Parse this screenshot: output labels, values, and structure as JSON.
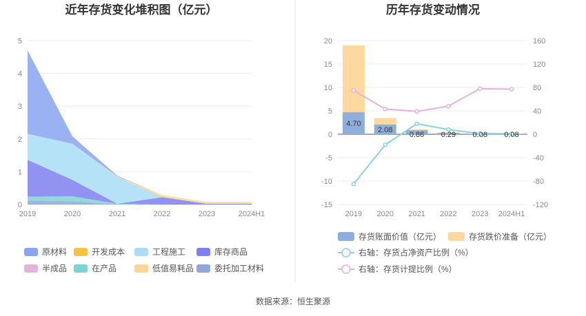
{
  "footer": {
    "source": "数据来源：恒生聚源"
  },
  "colors": {
    "raw_materials": "#8aa5f0",
    "dev_cost": "#f5c342",
    "engineering": "#a9ddf7",
    "finished_goods": "#7f7ff0",
    "semi_finished": "#e3b4d9",
    "wip": "#7dd3d3",
    "low_value": "#fbd69a",
    "consigned": "#8fa8d8",
    "book_value": "#8eaede",
    "impairment": "#fdd89f",
    "line_net_asset": "#86d3dc",
    "line_provision": "#e2b2d9"
  },
  "chart_data": [
    {
      "type": "area",
      "stacked": true,
      "title": "近年存货变化堆积图（亿元）",
      "x": [
        "2019",
        "2020",
        "2021",
        "2022",
        "2023",
        "2024H1"
      ],
      "ylim": [
        0,
        5
      ],
      "yticks": [
        "0",
        "1",
        "2",
        "3",
        "4",
        "5"
      ],
      "grid": true,
      "legend_position": "bottom",
      "series": [
        {
          "name": "委托加工材料",
          "color_key": "consigned",
          "values": [
            0.12,
            0.1,
            0.0,
            0.0,
            0.0,
            0.0
          ]
        },
        {
          "name": "在产品",
          "color_key": "wip",
          "values": [
            0.12,
            0.15,
            0.02,
            0.0,
            0.0,
            0.0
          ]
        },
        {
          "name": "半成品",
          "color_key": "semi_finished",
          "values": [
            0.0,
            0.0,
            0.0,
            0.0,
            0.0,
            0.0
          ]
        },
        {
          "name": "库存商品",
          "color_key": "finished_goods",
          "values": [
            1.12,
            0.5,
            0.0,
            0.22,
            0.02,
            0.02
          ]
        },
        {
          "name": "工程施工",
          "color_key": "engineering",
          "values": [
            0.8,
            1.1,
            0.82,
            0.0,
            0.0,
            0.0
          ]
        },
        {
          "name": "开发成本",
          "color_key": "dev_cost",
          "values": [
            0.0,
            0.0,
            0.0,
            0.02,
            0.0,
            0.0
          ]
        },
        {
          "name": "低值易耗品",
          "color_key": "low_value",
          "values": [
            0.0,
            0.0,
            0.02,
            0.05,
            0.06,
            0.06
          ]
        },
        {
          "name": "原材料",
          "color_key": "raw_materials",
          "values": [
            2.54,
            0.23,
            0.02,
            0.0,
            0.0,
            0.0
          ]
        }
      ],
      "legend_order": [
        "原材料",
        "开发成本",
        "工程施工",
        "库存商品",
        "半成品",
        "在产品",
        "低值易耗品",
        "委托加工材料"
      ]
    },
    {
      "type": "bar",
      "stacked": true,
      "title": "历年存货变动情况",
      "categories": [
        "2019",
        "2020",
        "2021",
        "2022",
        "2023",
        "2024H1"
      ],
      "ylim": [
        -15,
        20
      ],
      "yticks": [
        "-15",
        "-10",
        "-5",
        "0",
        "5",
        "10",
        "15",
        "20"
      ],
      "y2lim": [
        -120,
        160
      ],
      "y2ticks": [
        "-120",
        "-80",
        "-40",
        "0",
        "40",
        "80",
        "120",
        "160"
      ],
      "grid": true,
      "legend_position": "bottom",
      "series": [
        {
          "name": "存货账面价值（亿元）",
          "color_key": "book_value",
          "values": [
            4.7,
            2.08,
            0.86,
            0.29,
            0.08,
            0.08
          ],
          "labels": [
            "4.70",
            "2.08",
            "0.86",
            "0.29",
            "0.08",
            "0.08"
          ]
        },
        {
          "name": "存货跌价准备（亿元）",
          "color_key": "impairment",
          "values": [
            14.3,
            1.4,
            0.2,
            0.1,
            0.05,
            0.05
          ]
        }
      ],
      "lines": [
        {
          "name": "右轴：存货占净资产比例（%）",
          "color_key": "line_net_asset",
          "axis": "right",
          "values": [
            -85,
            -18,
            18,
            8,
            1,
            1
          ]
        },
        {
          "name": "右轴：存货计提比例（%）",
          "color_key": "line_provision",
          "axis": "right",
          "values": [
            75,
            43,
            39,
            48,
            78,
            77
          ]
        }
      ]
    }
  ]
}
